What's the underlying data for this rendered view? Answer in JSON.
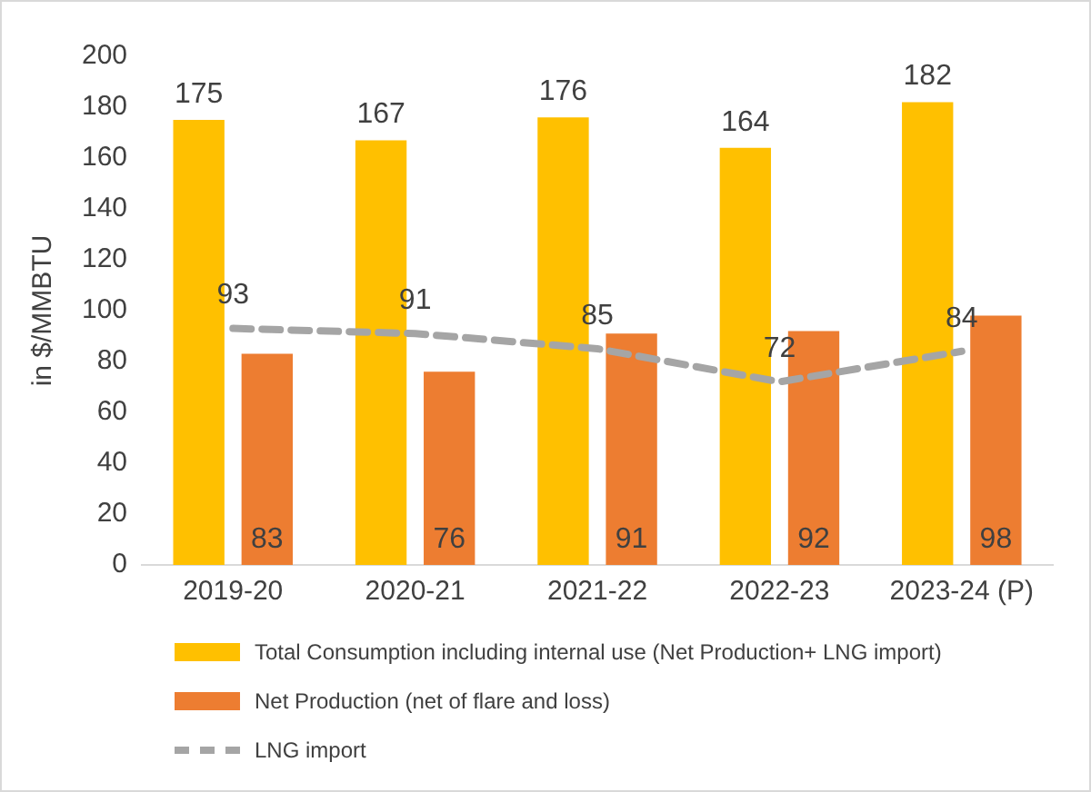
{
  "chart_data": {
    "type": "bar",
    "ylabel": "in $/MMBTU",
    "categories": [
      "2019-20",
      "2020-21",
      "2021-22",
      "2022-23",
      "2023-24 (P)"
    ],
    "series": [
      {
        "name": "Total Consumption including internal use (Net Production+ LNG import)",
        "color": "#ffc000",
        "values": [
          175,
          167,
          176,
          164,
          182
        ]
      },
      {
        "name": "Net Production (net of flare and loss)",
        "color": "#ed7d31",
        "values": [
          83,
          76,
          91,
          92,
          98
        ]
      },
      {
        "name": "LNG import",
        "type": "line",
        "color": "#a5a5a5",
        "line_style": "dashed",
        "marker": "none",
        "values": [
          93,
          91,
          85,
          72,
          84
        ]
      }
    ],
    "ylim": [
      0,
      200
    ],
    "yticks": [
      0,
      20,
      40,
      60,
      80,
      100,
      120,
      140,
      160,
      180,
      200
    ],
    "grid": false,
    "legend": "bottom",
    "data_labels": true
  }
}
